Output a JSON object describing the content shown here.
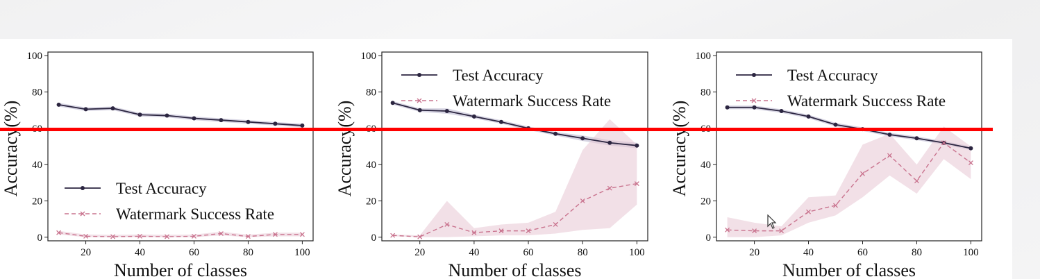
{
  "colors": {
    "test_accuracy": "#2b2540",
    "watermark": "#c9738e",
    "watermark_band": "#e8c6d3",
    "accuracy_band": "#b6b3cc",
    "highlight_line": "#ff0000"
  },
  "overlay": {
    "cursor_icon": "mouse-pointer-icon"
  },
  "chart_data": [
    {
      "type": "line",
      "xlabel": "Number of classes",
      "ylabel": "Accuracy(%)",
      "xticks": [
        20,
        40,
        60,
        80,
        100
      ],
      "yticks": [
        0,
        20,
        40,
        60,
        80,
        100
      ],
      "xlim": [
        6,
        104
      ],
      "ylim": [
        -2,
        102
      ],
      "grid": false,
      "legend_position": "bottom-left",
      "x": [
        10,
        20,
        30,
        40,
        50,
        60,
        70,
        80,
        90,
        100
      ],
      "series": [
        {
          "name": "Test Accuracy",
          "marker": "circle",
          "style": "solid",
          "values": [
            73,
            70.5,
            71,
            67.5,
            67,
            65.5,
            64.5,
            63.5,
            62.5,
            61.5
          ],
          "lower": [
            72,
            69.5,
            70,
            66.5,
            66,
            64.5,
            63.5,
            62.5,
            61.5,
            60.5
          ],
          "upper": [
            74,
            71.5,
            72,
            68.5,
            68,
            66.5,
            65.5,
            64.5,
            63.5,
            62.5
          ]
        },
        {
          "name": "Watermark Success Rate",
          "marker": "x",
          "style": "dashed",
          "values": [
            2.5,
            0.5,
            0.3,
            0.5,
            0.3,
            0.5,
            2,
            0.4,
            1.5,
            1.5
          ],
          "lower": [
            1.5,
            0,
            0,
            0,
            0,
            0,
            1,
            0,
            0.5,
            0.5
          ],
          "upper": [
            3.5,
            1.5,
            1.3,
            1.5,
            1.3,
            1.5,
            3,
            1.4,
            2.5,
            2.5
          ]
        }
      ]
    },
    {
      "type": "line",
      "xlabel": "Number of classes",
      "ylabel": "Accuracy(%)",
      "xticks": [
        20,
        40,
        60,
        80,
        100
      ],
      "yticks": [
        0,
        20,
        40,
        60,
        80,
        100
      ],
      "xlim": [
        6,
        104
      ],
      "ylim": [
        -2,
        102
      ],
      "grid": false,
      "legend_position": "top-left",
      "x": [
        10,
        20,
        30,
        40,
        50,
        60,
        70,
        80,
        90,
        100
      ],
      "series": [
        {
          "name": "Test Accuracy",
          "marker": "circle",
          "style": "solid",
          "values": [
            74,
            70,
            69.5,
            66.5,
            63.5,
            60,
            57,
            54.5,
            52,
            50.5
          ],
          "lower": [
            73,
            69,
            68,
            65.5,
            62.5,
            59,
            56,
            53,
            50.5,
            49
          ],
          "upper": [
            75,
            71,
            71,
            67.5,
            64.5,
            61,
            58,
            56,
            53.5,
            52
          ]
        },
        {
          "name": "Watermark Success Rate",
          "marker": "x",
          "style": "dashed",
          "values": [
            1,
            0.2,
            7,
            2.5,
            3.5,
            3.5,
            7,
            20,
            27,
            29.5
          ],
          "lower": [
            0.5,
            0,
            0,
            0.5,
            1,
            1,
            2,
            4,
            5,
            18
          ],
          "upper": [
            1.5,
            1,
            20,
            5,
            7,
            8,
            14,
            48,
            65,
            51
          ]
        }
      ]
    },
    {
      "type": "line",
      "xlabel": "Number of classes",
      "ylabel": "Accuracy(%)",
      "xticks": [
        20,
        40,
        60,
        80,
        100
      ],
      "yticks": [
        0,
        20,
        40,
        60,
        80,
        100
      ],
      "xlim": [
        6,
        104
      ],
      "ylim": [
        -2,
        102
      ],
      "grid": false,
      "legend_position": "top-left",
      "x": [
        10,
        20,
        30,
        40,
        50,
        60,
        70,
        80,
        90,
        100
      ],
      "series": [
        {
          "name": "Test Accuracy",
          "marker": "circle",
          "style": "solid",
          "values": [
            71.5,
            71.5,
            69.5,
            66.5,
            62,
            59.5,
            56.5,
            54.5,
            52,
            49
          ],
          "lower": [
            70.5,
            70.5,
            68.5,
            65.5,
            61,
            58.5,
            55.5,
            53.5,
            51,
            48
          ],
          "upper": [
            72.5,
            72.5,
            70.5,
            67.5,
            63,
            60.5,
            57.5,
            55.5,
            53,
            50
          ]
        },
        {
          "name": "Watermark Success Rate",
          "marker": "x",
          "style": "dashed",
          "values": [
            4,
            3.5,
            3.5,
            14,
            17.5,
            35,
            45,
            31,
            52,
            41
          ],
          "lower": [
            0,
            0,
            1,
            8,
            12,
            22,
            34,
            24,
            43,
            32
          ],
          "upper": [
            11,
            8,
            6,
            22,
            23,
            51,
            57,
            40,
            61,
            50
          ]
        }
      ]
    }
  ]
}
